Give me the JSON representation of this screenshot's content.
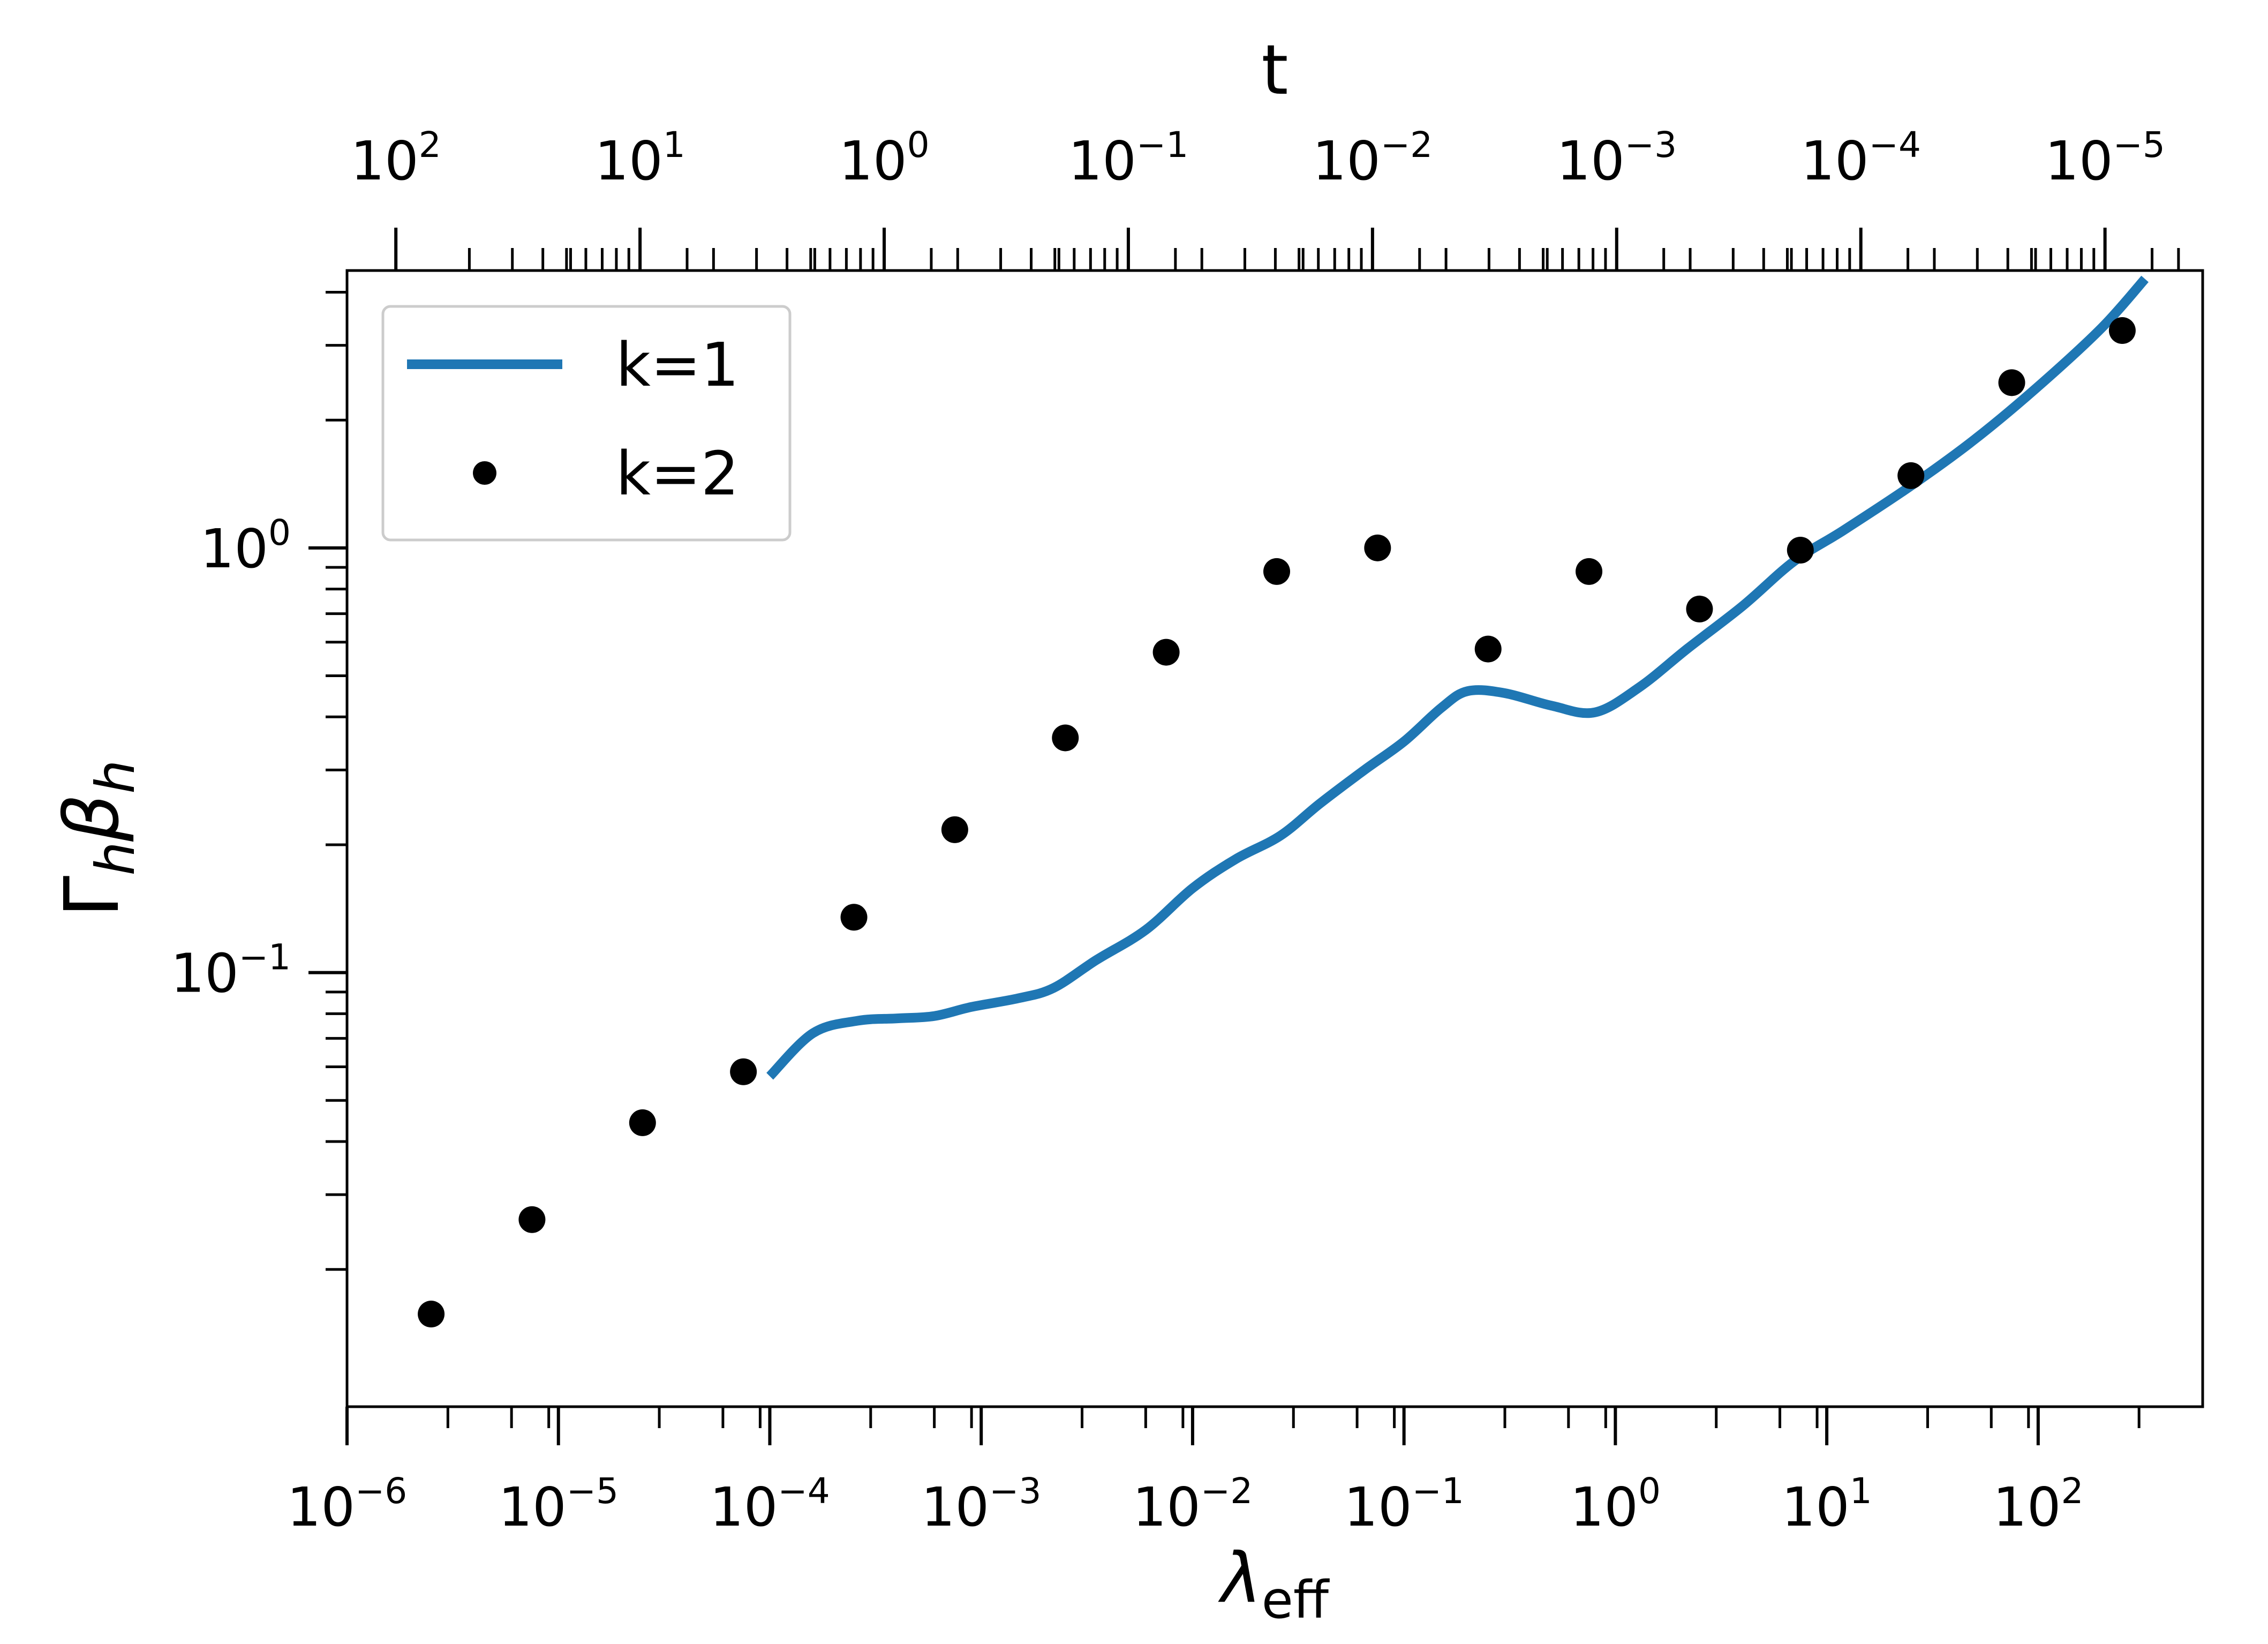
{
  "chart_data": {
    "type": "line",
    "title": "",
    "xlabel": "λ",
    "xlabel_subscript": "eff",
    "ylabel": "Γ",
    "ylabel_parts": [
      "Γ",
      "h",
      "β",
      "h"
    ],
    "x2label": "t",
    "xscale": "log",
    "yscale": "log",
    "xlim": [
      1e-06,
      600
    ],
    "ylim": [
      0.0095,
      4.5
    ],
    "x2lim_log10": [
      2.2,
      -5.4
    ],
    "grid": false,
    "legend_position": "top-left",
    "x_ticks": [
      {
        "base": "10",
        "exp": "−6"
      },
      {
        "base": "10",
        "exp": "−5"
      },
      {
        "base": "10",
        "exp": "−4"
      },
      {
        "base": "10",
        "exp": "−3"
      },
      {
        "base": "10",
        "exp": "−2"
      },
      {
        "base": "10",
        "exp": "−1"
      },
      {
        "base": "10",
        "exp": "0"
      },
      {
        "base": "10",
        "exp": "1"
      },
      {
        "base": "10",
        "exp": "2"
      }
    ],
    "y_ticks": [
      {
        "base": "10",
        "exp": "0"
      },
      {
        "base": "10",
        "exp": "−1"
      }
    ],
    "x2_ticks": [
      {
        "base": "10",
        "exp": "2"
      },
      {
        "base": "10",
        "exp": "1"
      },
      {
        "base": "10",
        "exp": "0"
      },
      {
        "base": "10",
        "exp": "−1"
      },
      {
        "base": "10",
        "exp": "−2"
      },
      {
        "base": "10",
        "exp": "−3"
      },
      {
        "base": "10",
        "exp": "−4"
      },
      {
        "base": "10",
        "exp": "−5"
      }
    ],
    "series": [
      {
        "name": "k=1",
        "style": "line",
        "color": "#1f77b4",
        "x": [
          0.0001,
          0.00016,
          0.00026,
          0.0004,
          0.0006,
          0.0009,
          0.0015,
          0.0022,
          0.0035,
          0.006,
          0.01,
          0.016,
          0.026,
          0.04,
          0.065,
          0.1,
          0.15,
          0.2,
          0.3,
          0.5,
          0.8,
          1.3,
          2.2,
          4,
          7,
          12,
          25,
          50,
          100,
          200,
          320
        ],
        "y": [
          0.057,
          0.072,
          0.077,
          0.078,
          0.079,
          0.083,
          0.087,
          0.092,
          0.107,
          0.126,
          0.158,
          0.185,
          0.21,
          0.25,
          0.3,
          0.35,
          0.42,
          0.46,
          0.455,
          0.425,
          0.41,
          0.47,
          0.58,
          0.73,
          0.93,
          1.1,
          1.4,
          1.8,
          2.4,
          3.3,
          4.3
        ]
      },
      {
        "name": "k=2",
        "style": "scatter",
        "color": "#000000",
        "x": [
          2.5e-06,
          7.5e-06,
          2.5e-05,
          7.5e-05,
          0.00025,
          0.00075,
          0.0025,
          0.0075,
          0.025,
          0.075,
          0.25,
          0.75,
          2.5,
          7.5,
          25,
          75,
          250
        ],
        "y": [
          0.0157,
          0.0262,
          0.0443,
          0.0584,
          0.135,
          0.217,
          0.357,
          0.568,
          0.88,
          1.0,
          0.578,
          0.88,
          0.718,
          0.988,
          1.48,
          2.45,
          3.25
        ]
      }
    ]
  }
}
